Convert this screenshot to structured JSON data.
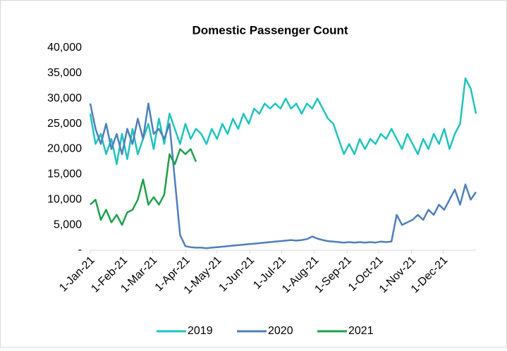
{
  "chart_data": {
    "type": "line",
    "title": "Domestic Passenger Count",
    "x": [
      0,
      5,
      10,
      15,
      20,
      25,
      30,
      35,
      40,
      45,
      50,
      55,
      60,
      65,
      70,
      75,
      80,
      85,
      90,
      95,
      100,
      105,
      110,
      115,
      120,
      125,
      130,
      135,
      140,
      145,
      150,
      155,
      160,
      165,
      170,
      175,
      180,
      185,
      190,
      195,
      200,
      205,
      210,
      215,
      220,
      225,
      230,
      235,
      240,
      245,
      250,
      255,
      260,
      265,
      270,
      275,
      280,
      285,
      290,
      295,
      300,
      305,
      310,
      315,
      320,
      325,
      330,
      335,
      340,
      345,
      350,
      355,
      360,
      365
    ],
    "xlim": [
      0,
      365
    ],
    "xticks": [
      {
        "value": 0,
        "label": "1-Jan-21"
      },
      {
        "value": 31,
        "label": "1-Feb-21"
      },
      {
        "value": 59,
        "label": "1-Mar-21"
      },
      {
        "value": 90,
        "label": "1-Apr-21"
      },
      {
        "value": 120,
        "label": "1-May-21"
      },
      {
        "value": 151,
        "label": "1-Jun-21"
      },
      {
        "value": 181,
        "label": "1-Jul-21"
      },
      {
        "value": 212,
        "label": "1-Aug-21"
      },
      {
        "value": 243,
        "label": "1-Sep-21"
      },
      {
        "value": 273,
        "label": "1-Oct-21"
      },
      {
        "value": 304,
        "label": "1-Nov-21"
      },
      {
        "value": 334,
        "label": "1-Dec-21"
      }
    ],
    "ylim": [
      0,
      40000
    ],
    "yticks": [
      {
        "value": 0,
        "label": "-"
      },
      {
        "value": 5000,
        "label": "5,000"
      },
      {
        "value": 10000,
        "label": "10,000"
      },
      {
        "value": 15000,
        "label": "15,000"
      },
      {
        "value": 20000,
        "label": "20,000"
      },
      {
        "value": 25000,
        "label": "25,000"
      },
      {
        "value": 30000,
        "label": "30,000"
      },
      {
        "value": 35000,
        "label": "35,000"
      },
      {
        "value": 40000,
        "label": "40,000"
      }
    ],
    "legend": "bottom",
    "series": [
      {
        "name": "2019",
        "color": "#1fc4bd",
        "values": [
          27000,
          21000,
          23000,
          19000,
          22000,
          17000,
          23000,
          18000,
          24000,
          19000,
          22000,
          25000,
          20000,
          26000,
          21000,
          27000,
          24000,
          21000,
          25000,
          22000,
          24000,
          23000,
          21000,
          24000,
          22000,
          25000,
          23000,
          26000,
          24000,
          27000,
          25000,
          28000,
          27000,
          29000,
          28000,
          29000,
          28000,
          30000,
          28000,
          29000,
          27000,
          29000,
          28000,
          30000,
          28000,
          26000,
          25000,
          22000,
          19000,
          21000,
          19000,
          22000,
          20000,
          22000,
          21000,
          23000,
          22000,
          24000,
          22000,
          20000,
          23000,
          21000,
          19000,
          22000,
          20000,
          23000,
          21000,
          24000,
          20000,
          23000,
          25000,
          34000,
          32000,
          27000
        ]
      },
      {
        "name": "2020",
        "color": "#4f7fbc",
        "values": [
          29000,
          24000,
          21000,
          25000,
          20000,
          23000,
          19000,
          24000,
          21000,
          26000,
          22000,
          29000,
          23000,
          24000,
          22000,
          25000,
          14000,
          3000,
          800,
          600,
          500,
          500,
          400,
          500,
          600,
          700,
          800,
          900,
          1000,
          1100,
          1200,
          1300,
          1400,
          1500,
          1600,
          1700,
          1800,
          1900,
          2000,
          1900,
          2000,
          2200,
          2700,
          2300,
          2000,
          1800,
          1700,
          1600,
          1500,
          1600,
          1500,
          1600,
          1500,
          1600,
          1500,
          1700,
          1600,
          1700,
          7000,
          5000,
          5500,
          6000,
          7000,
          6000,
          8000,
          7000,
          9000,
          8000,
          10000,
          12000,
          9000,
          13000,
          10000,
          11500
        ]
      },
      {
        "name": "2021",
        "color": "#1fa04a",
        "values": [
          9000,
          10000,
          6000,
          8000,
          5500,
          7000,
          5000,
          7500,
          8000,
          10000,
          14000,
          9000,
          10500,
          9000,
          11000,
          19000,
          17000,
          20000,
          19000,
          20000,
          17500,
          null,
          null,
          null,
          null,
          null,
          null,
          null,
          null,
          null,
          null,
          null,
          null,
          null,
          null,
          null,
          null,
          null,
          null,
          null,
          null,
          null,
          null,
          null,
          null,
          null,
          null,
          null,
          null,
          null,
          null,
          null,
          null,
          null,
          null,
          null,
          null,
          null,
          null,
          null,
          null,
          null,
          null,
          null,
          null,
          null,
          null,
          null,
          null,
          null,
          null,
          null,
          null,
          null
        ]
      }
    ]
  }
}
